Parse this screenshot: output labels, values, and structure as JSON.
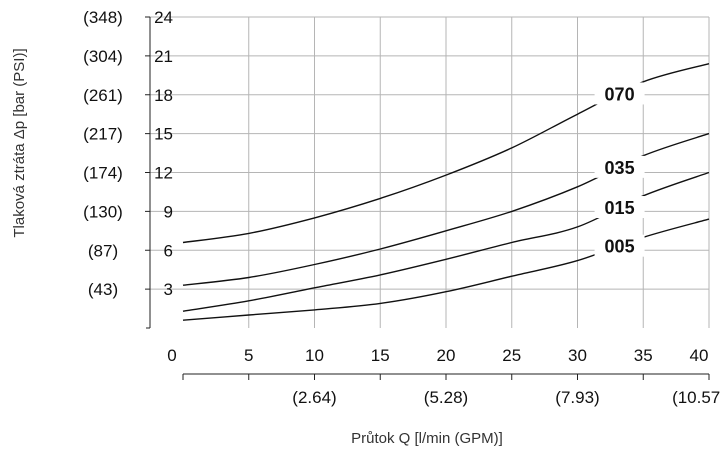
{
  "chart_data": {
    "type": "line",
    "xlabel": "Průtok Q [l/min (GPM)]",
    "ylabel": "Tlaková ztráta Δp [bar (PSI)]",
    "xlim": [
      0,
      40
    ],
    "ylim": [
      0,
      24
    ],
    "x_ticks": [
      0,
      5,
      10,
      15,
      20,
      25,
      30,
      35,
      40
    ],
    "x_tick_labels": [
      "0",
      "5",
      "10",
      "15",
      "20",
      "25",
      "30",
      "35",
      "40"
    ],
    "x_secondary_ticks": [
      10,
      20,
      30,
      40
    ],
    "x_secondary_tick_labels": [
      "(2.64)",
      "(5.28)",
      "(7.93)",
      "(10.57)"
    ],
    "y_ticks": [
      3,
      6,
      9,
      12,
      15,
      18,
      21,
      24
    ],
    "y_tick_labels": [
      "3",
      "6",
      "9",
      "12",
      "15",
      "18",
      "21",
      "24"
    ],
    "y_secondary_tick_labels": [
      "(43)",
      "(87)",
      "(130)",
      "(174)",
      "(217)",
      "(261)",
      "(304)",
      "(348)"
    ],
    "grid": true,
    "series": [
      {
        "name": "070",
        "x": [
          0,
          5,
          10,
          15,
          20,
          25,
          30,
          35,
          40
        ],
        "y": [
          6.6,
          7.3,
          8.5,
          10.0,
          11.8,
          13.9,
          16.5,
          19.0,
          20.4
        ],
        "label_x": 33.2
      },
      {
        "name": "035",
        "x": [
          0,
          5,
          10,
          15,
          20,
          25,
          30,
          35,
          40
        ],
        "y": [
          3.3,
          3.9,
          4.9,
          6.1,
          7.5,
          9.0,
          10.9,
          13.3,
          15.0
        ],
        "label_x": 33.2
      },
      {
        "name": "015",
        "x": [
          0,
          5,
          10,
          15,
          20,
          25,
          30,
          35,
          40
        ],
        "y": [
          1.3,
          2.1,
          3.1,
          4.1,
          5.3,
          6.6,
          7.8,
          10.2,
          12.0
        ],
        "label_x": 33.2
      },
      {
        "name": "005",
        "x": [
          0,
          5,
          10,
          15,
          20,
          25,
          30,
          35,
          40
        ],
        "y": [
          0.6,
          1.0,
          1.4,
          1.9,
          2.8,
          4.0,
          5.2,
          7.0,
          8.4
        ],
        "label_x": 33.2
      }
    ]
  }
}
